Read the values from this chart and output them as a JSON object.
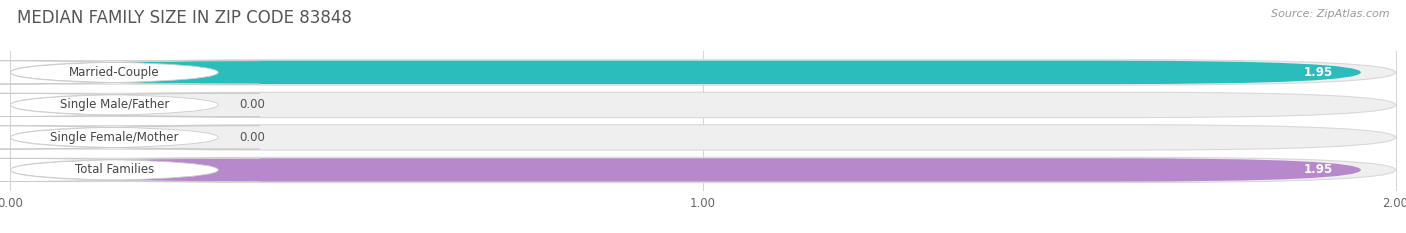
{
  "title": "MEDIAN FAMILY SIZE IN ZIP CODE 83848",
  "source": "Source: ZipAtlas.com",
  "categories": [
    "Married-Couple",
    "Single Male/Father",
    "Single Female/Mother",
    "Total Families"
  ],
  "values": [
    1.95,
    0.0,
    0.0,
    1.95
  ],
  "bar_colors": [
    "#2bbcbc",
    "#8faee0",
    "#e898a8",
    "#b888cc"
  ],
  "xlim_max": 2.0,
  "xticks": [
    0.0,
    1.0,
    2.0
  ],
  "xtick_labels": [
    "0.00",
    "1.00",
    "2.00"
  ],
  "title_color": "#555555",
  "title_fontsize": 12,
  "label_fontsize": 8.5,
  "value_fontsize": 8.5,
  "source_fontsize": 8,
  "source_color": "#999999",
  "bg_color": "#efefef",
  "bg_edge_color": "#d8d8d8",
  "figsize": [
    14.06,
    2.33
  ],
  "dpi": 100
}
